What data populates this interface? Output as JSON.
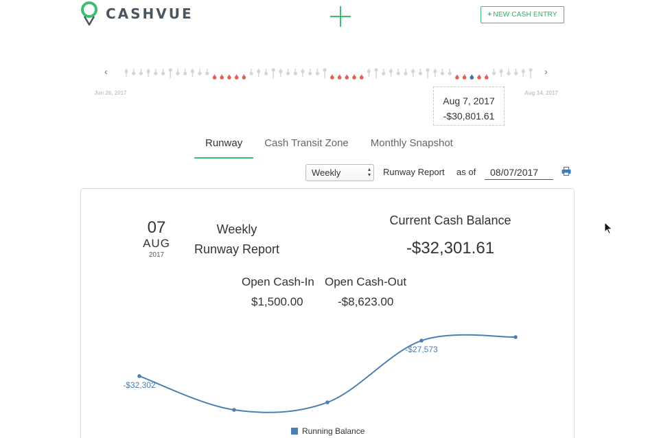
{
  "header": {
    "brand": "CASHVUE",
    "new_entry_label": "NEW CASH ENTRY",
    "new_entry_plus": "+",
    "accent_color": "#3ebd70"
  },
  "timeline": {
    "start_date": "Jun 26, 2017",
    "end_date": "Aug 14, 2017",
    "prev_icon": "‹",
    "next_icon": "›",
    "markers": [
      "grey",
      "grey",
      "grey",
      "grey",
      "grey",
      "grey",
      "grey",
      "grey",
      "grey",
      "grey",
      "grey",
      "grey",
      "red",
      "red",
      "red",
      "red",
      "red",
      "grey",
      "grey",
      "grey",
      "grey",
      "grey",
      "grey",
      "grey",
      "grey",
      "grey",
      "grey",
      "grey",
      "red",
      "red",
      "red",
      "red",
      "red",
      "grey",
      "grey",
      "grey",
      "grey",
      "grey",
      "grey",
      "grey",
      "grey",
      "grey",
      "grey",
      "grey",
      "grey",
      "red",
      "red",
      "blue",
      "red",
      "red",
      "grey",
      "grey",
      "grey",
      "grey",
      "grey",
      "grey"
    ],
    "tooltip": {
      "date": "Aug 7, 2017",
      "value": "-$30,801.61"
    },
    "colors": {
      "grey": "#d6d6d6",
      "red": "#e06454",
      "blue": "#3e6fa8"
    }
  },
  "tabs": [
    {
      "label": "Runway",
      "active": true
    },
    {
      "label": "Cash Transit Zone",
      "active": false
    },
    {
      "label": "Monthly Snapshot",
      "active": false
    }
  ],
  "controls": {
    "period": "Weekly",
    "report_label": "Runway Report",
    "as_of_label": "as of",
    "as_of_date": "08/07/2017"
  },
  "report": {
    "day": "07",
    "month": "AUG",
    "year": "2017",
    "title_line1": "Weekly",
    "title_line2": "Runway Report",
    "current_balance_label": "Current Cash Balance",
    "current_balance": "-$32,301.61",
    "open_cash_in_label": "Open Cash-In",
    "open_cash_in": "$1,500.00",
    "open_cash_out_label": "Open Cash-Out",
    "open_cash_out": "-$8,623.00"
  },
  "chart_data": {
    "type": "line",
    "series": [
      {
        "name": "Running Balance",
        "values": [
          -32302,
          -36800,
          -35800,
          -27573,
          -27100
        ]
      }
    ],
    "data_labels": [
      "-$32,302",
      "",
      "",
      "-$27,573",
      ""
    ],
    "legend": "bottom",
    "color": "#4a7fb0"
  }
}
